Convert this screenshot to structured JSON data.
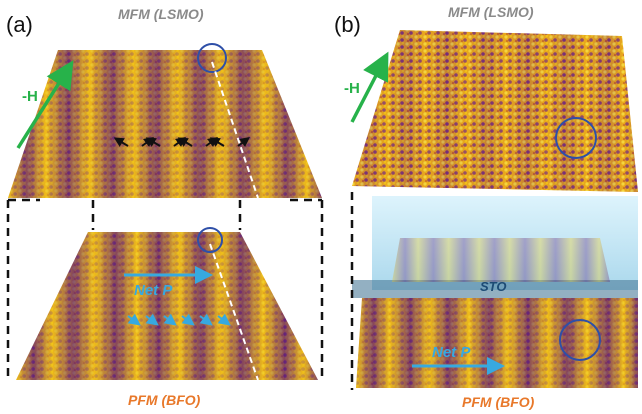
{
  "panel_a": {
    "label": "(a)",
    "top_caption": "MFM (LSMO)",
    "bottom_caption": "PFM (BFO)",
    "field_label": "-H",
    "net_polarization_label": "Net P"
  },
  "panel_b": {
    "label": "(b)",
    "top_caption": "MFM (LSMO)",
    "bottom_caption": "PFM (BFO)",
    "field_label": "-H",
    "net_polarization_label": "Net P",
    "substrate_label": "STO"
  },
  "colors": {
    "stripe_dark": "#5a1c78",
    "stripe_light": "#f2c818",
    "field_arrow": "#27b24a",
    "polarization_arrow": "#37a9e0",
    "marker_circle": "#2e4fa8",
    "pfm_caption": "#e8782a",
    "mfm_caption": "#8a8a8a",
    "sto_layer": "#aee0f2"
  }
}
